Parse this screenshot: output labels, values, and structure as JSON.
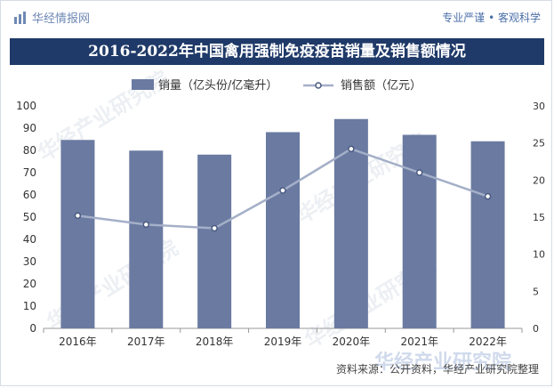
{
  "header": {
    "brand": "华经情报网",
    "slogan": "专业严谨 • 客观科学"
  },
  "title": "2016-2022年中国禽用强制免疫疫苗销量及销售额情况",
  "footer": {
    "source": "资料来源：公开资料，华经产业研究院整理"
  },
  "watermark": {
    "text": "华经产业研究院",
    "logo_text": "华经产业研究院"
  },
  "colors": {
    "bar": "#6a7aa1",
    "line": "#a4afc8",
    "title_bg": "#1f3a68",
    "brand": "#6e88b4"
  },
  "chart_data": {
    "type": "bar",
    "categories": [
      "2016年",
      "2017年",
      "2018年",
      "2019年",
      "2020年",
      "2021年",
      "2022年"
    ],
    "series": [
      {
        "name": "销量（亿头份/亿毫升）",
        "type": "bar",
        "axis": "left",
        "values": [
          84.7,
          79.9,
          78.1,
          88.2,
          94.1,
          87.0,
          84.1
        ]
      },
      {
        "name": "销售额（亿元）",
        "type": "line",
        "axis": "right",
        "values": [
          15.2,
          14.0,
          13.5,
          18.6,
          24.2,
          21.0,
          17.8
        ]
      }
    ],
    "y_left": {
      "min": 0,
      "max": 100,
      "ticks": [
        0,
        10,
        20,
        30,
        40,
        50,
        60,
        70,
        80,
        90,
        100
      ]
    },
    "y_right": {
      "min": 0,
      "max": 30,
      "ticks": [
        0,
        5,
        10,
        15,
        20,
        25,
        30
      ]
    },
    "legend": "top-center",
    "grid": false
  }
}
